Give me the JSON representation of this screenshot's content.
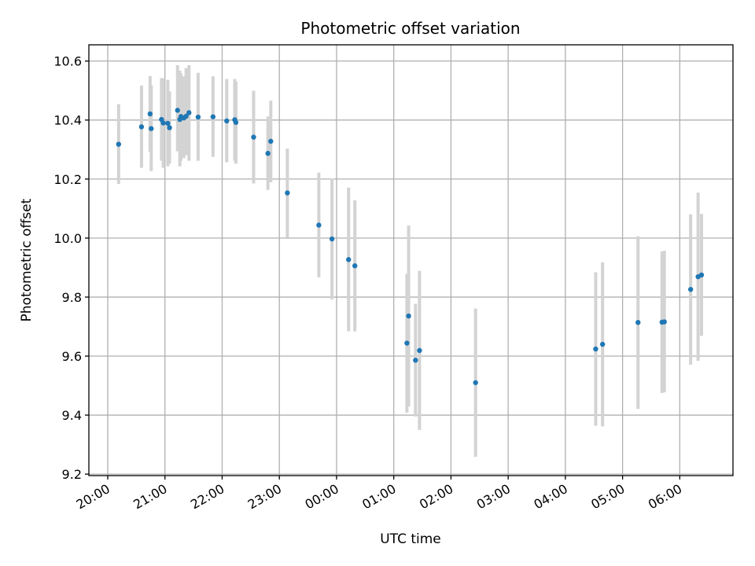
{
  "chart_data": {
    "type": "scatter",
    "title": "Photometric offset variation",
    "xlabel": "UTC time",
    "ylabel": "Photometric offset",
    "x_unit": "hours (UTC, continuing past midnight)",
    "xlim": [
      19.67,
      30.93
    ],
    "ylim": [
      9.195,
      10.655
    ],
    "x_ticks": [
      {
        "value": 20,
        "label": "20:00"
      },
      {
        "value": 21,
        "label": "21:00"
      },
      {
        "value": 22,
        "label": "22:00"
      },
      {
        "value": 23,
        "label": "23:00"
      },
      {
        "value": 24,
        "label": "00:00"
      },
      {
        "value": 25,
        "label": "01:00"
      },
      {
        "value": 26,
        "label": "02:00"
      },
      {
        "value": 27,
        "label": "03:00"
      },
      {
        "value": 28,
        "label": "04:00"
      },
      {
        "value": 29,
        "label": "05:00"
      },
      {
        "value": 30,
        "label": "06:00"
      }
    ],
    "y_ticks": [
      {
        "value": 9.2,
        "label": "9.2"
      },
      {
        "value": 9.4,
        "label": "9.4"
      },
      {
        "value": 9.6,
        "label": "9.6"
      },
      {
        "value": 9.8,
        "label": "9.8"
      },
      {
        "value": 10.0,
        "label": "10.0"
      },
      {
        "value": 10.2,
        "label": "10.2"
      },
      {
        "value": 10.4,
        "label": "10.4"
      },
      {
        "value": 10.6,
        "label": "10.6"
      }
    ],
    "grid": true,
    "colors": {
      "point": "#1f77b4",
      "errorbar": "#d3d3d3",
      "grid": "#b0b0b0"
    },
    "points": [
      {
        "x": 20.19,
        "y": 10.318,
        "lo": 10.183,
        "hi": 10.454
      },
      {
        "x": 20.59,
        "y": 10.377,
        "lo": 10.238,
        "hi": 10.517
      },
      {
        "x": 20.74,
        "y": 10.421,
        "lo": 10.293,
        "hi": 10.549
      },
      {
        "x": 20.76,
        "y": 10.371,
        "lo": 10.227,
        "hi": 10.517
      },
      {
        "x": 20.94,
        "y": 10.402,
        "lo": 10.262,
        "hi": 10.542
      },
      {
        "x": 20.97,
        "y": 10.39,
        "lo": 10.238,
        "hi": 10.542
      },
      {
        "x": 21.05,
        "y": 10.389,
        "lo": 10.243,
        "hi": 10.536
      },
      {
        "x": 21.08,
        "y": 10.374,
        "lo": 10.252,
        "hi": 10.497
      },
      {
        "x": 21.22,
        "y": 10.433,
        "lo": 10.294,
        "hi": 10.586
      },
      {
        "x": 21.26,
        "y": 10.402,
        "lo": 10.243,
        "hi": 10.567
      },
      {
        "x": 21.28,
        "y": 10.412,
        "lo": 10.262,
        "hi": 10.558
      },
      {
        "x": 21.33,
        "y": 10.407,
        "lo": 10.271,
        "hi": 10.548
      },
      {
        "x": 21.37,
        "y": 10.413,
        "lo": 10.281,
        "hi": 10.576
      },
      {
        "x": 21.42,
        "y": 10.425,
        "lo": 10.262,
        "hi": 10.586
      },
      {
        "x": 21.58,
        "y": 10.41,
        "lo": 10.262,
        "hi": 10.56
      },
      {
        "x": 21.84,
        "y": 10.411,
        "lo": 10.275,
        "hi": 10.548
      },
      {
        "x": 22.08,
        "y": 10.397,
        "lo": 10.257,
        "hi": 10.539
      },
      {
        "x": 22.22,
        "y": 10.401,
        "lo": 10.262,
        "hi": 10.539
      },
      {
        "x": 22.24,
        "y": 10.392,
        "lo": 10.252,
        "hi": 10.53
      },
      {
        "x": 22.55,
        "y": 10.342,
        "lo": 10.185,
        "hi": 10.499
      },
      {
        "x": 22.8,
        "y": 10.287,
        "lo": 10.163,
        "hi": 10.412
      },
      {
        "x": 22.85,
        "y": 10.328,
        "lo": 10.189,
        "hi": 10.466
      },
      {
        "x": 23.14,
        "y": 10.153,
        "lo": 10.001,
        "hi": 10.303
      },
      {
        "x": 23.69,
        "y": 10.044,
        "lo": 9.867,
        "hi": 10.222
      },
      {
        "x": 23.92,
        "y": 9.997,
        "lo": 9.792,
        "hi": 10.202
      },
      {
        "x": 24.21,
        "y": 9.927,
        "lo": 9.684,
        "hi": 10.171
      },
      {
        "x": 24.32,
        "y": 9.906,
        "lo": 9.684,
        "hi": 10.128
      },
      {
        "x": 25.23,
        "y": 9.644,
        "lo": 9.408,
        "hi": 9.879
      },
      {
        "x": 25.26,
        "y": 9.736,
        "lo": 9.429,
        "hi": 10.043
      },
      {
        "x": 25.38,
        "y": 9.586,
        "lo": 9.395,
        "hi": 9.777
      },
      {
        "x": 25.45,
        "y": 9.619,
        "lo": 9.35,
        "hi": 9.889
      },
      {
        "x": 26.43,
        "y": 9.51,
        "lo": 9.259,
        "hi": 9.761
      },
      {
        "x": 28.53,
        "y": 9.624,
        "lo": 9.364,
        "hi": 9.884
      },
      {
        "x": 28.65,
        "y": 9.64,
        "lo": 9.362,
        "hi": 9.918
      },
      {
        "x": 29.27,
        "y": 9.714,
        "lo": 9.421,
        "hi": 10.006
      },
      {
        "x": 29.69,
        "y": 9.715,
        "lo": 9.475,
        "hi": 9.955
      },
      {
        "x": 29.73,
        "y": 9.716,
        "lo": 9.477,
        "hi": 9.957
      },
      {
        "x": 30.19,
        "y": 9.826,
        "lo": 9.571,
        "hi": 10.081
      },
      {
        "x": 30.32,
        "y": 9.869,
        "lo": 9.584,
        "hi": 10.154
      },
      {
        "x": 30.38,
        "y": 9.875,
        "lo": 9.669,
        "hi": 10.082
      }
    ]
  }
}
